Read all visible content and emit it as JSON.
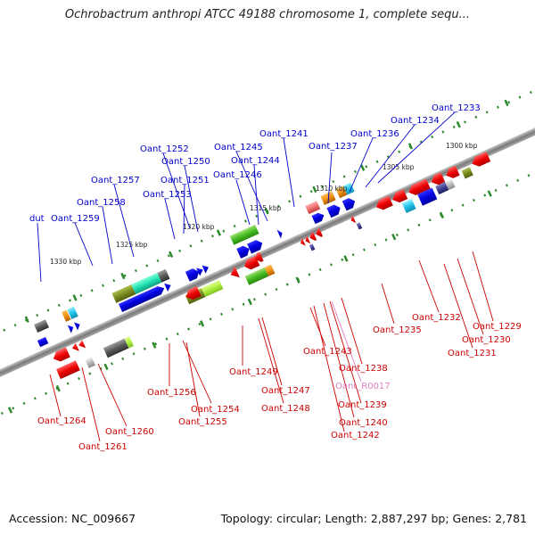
{
  "title": "Ochrobactrum anthropi ATCC 49188 chromosome 1, complete sequ...",
  "footer": {
    "accession": "Accession: NC_009667",
    "topology": "Topology: circular; Length: 2,887,297 bp; Genes: 2,781"
  },
  "colors": {
    "upper_label": "#0000cc",
    "lower_label": "#cc0000",
    "rna_label": "#e080c0",
    "backbone": "#808080",
    "tick": "#2a8a2a"
  },
  "ruler_labels": [
    "1300 kbp",
    "1305 kbp",
    "1310 kbp",
    "1315 kbp",
    "1320 kbp",
    "1325 kbp",
    "1330 kbp"
  ],
  "gene_labels_upper": [
    "Oant_1233",
    "Oant_1234",
    "Oant_1236",
    "Oant_1237",
    "Oant_1241",
    "Oant_1245",
    "Oant_1244",
    "Oant_1246",
    "Oant_1252",
    "Oant_1250",
    "Oant_1251",
    "Oant_1253",
    "Oant_1257",
    "Oant_1258",
    "dut",
    "Oant_1259"
  ],
  "gene_labels_lower": [
    "Oant_1232",
    "Oant_1229",
    "Oant_1230",
    "Oant_1231",
    "Oant_1235",
    "Oant_1243",
    "Oant_1238",
    "Oant_R0017",
    "Oant_1239",
    "Oant_1240",
    "Oant_1242",
    "Oant_1249",
    "Oant_1247",
    "Oant_1248",
    "Oant_1256",
    "Oant_1254",
    "Oant_1255",
    "Oant_1264",
    "Oant_1260",
    "Oant_1261"
  ]
}
